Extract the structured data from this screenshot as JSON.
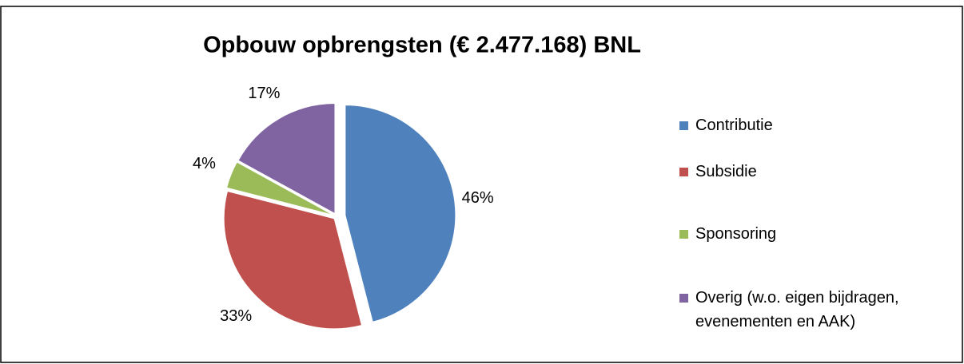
{
  "chart_data": {
    "type": "pie",
    "title": "Opbouw opbrengsten (€ 2.477.168) BNL",
    "categories": [
      "Contributie",
      "Subsidie",
      "Sponsoring",
      "Overig (w.o. eigen bijdragen, evenementen en AAK)"
    ],
    "values": [
      46,
      33,
      4,
      17
    ],
    "value_labels": [
      "46%",
      "33%",
      "4%",
      "17%"
    ],
    "colors": [
      "#4f81bd",
      "#c0504d",
      "#9bbb59",
      "#8064a2"
    ],
    "legend": "right"
  }
}
